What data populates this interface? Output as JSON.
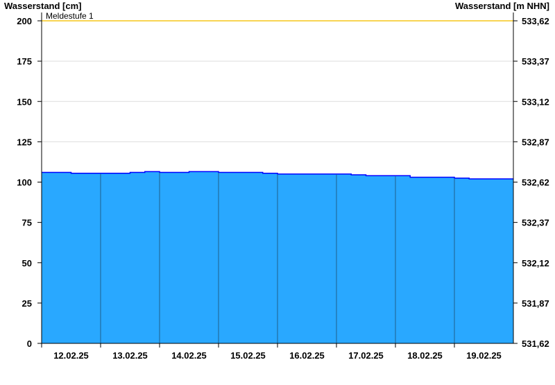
{
  "chart_data": {
    "type": "area",
    "ylabel_left": "Wasserstand [cm]",
    "ylabel_right": "Wasserstand [m NHN]",
    "ylim": [
      0,
      200
    ],
    "y_ticks": [
      0,
      25,
      50,
      75,
      100,
      125,
      150,
      175,
      200
    ],
    "y_ticks_right": [
      "531,62",
      "531,87",
      "532,12",
      "532,37",
      "532,62",
      "532,87",
      "533,12",
      "533,37",
      "533,62"
    ],
    "x_range": [
      "12.02.25 00:00",
      "20.02.25 00:00"
    ],
    "x_tick_labels": [
      "12.02.25",
      "13.02.25",
      "14.02.25",
      "15.02.25",
      "16.02.25",
      "17.02.25",
      "18.02.25",
      "19.02.25"
    ],
    "x_interval_hours": 6,
    "values": [
      106,
      106,
      105.5,
      105.5,
      105.5,
      105.5,
      106,
      106.5,
      106,
      106,
      106.5,
      106.5,
      106,
      106,
      106,
      105.5,
      105,
      105,
      105,
      105,
      105,
      104.5,
      104,
      104,
      104,
      103,
      103,
      103,
      102.5,
      102,
      102,
      102,
      101.5
    ],
    "thresholds": [
      {
        "label": "Meldestufe 1",
        "value": 200,
        "color": "#F5C518"
      }
    ],
    "grid": true,
    "colors": {
      "fill": "#29A8FF",
      "line": "#0000FF",
      "day_lines": "#1F5F8B",
      "grid": "#DDDDDD"
    }
  }
}
